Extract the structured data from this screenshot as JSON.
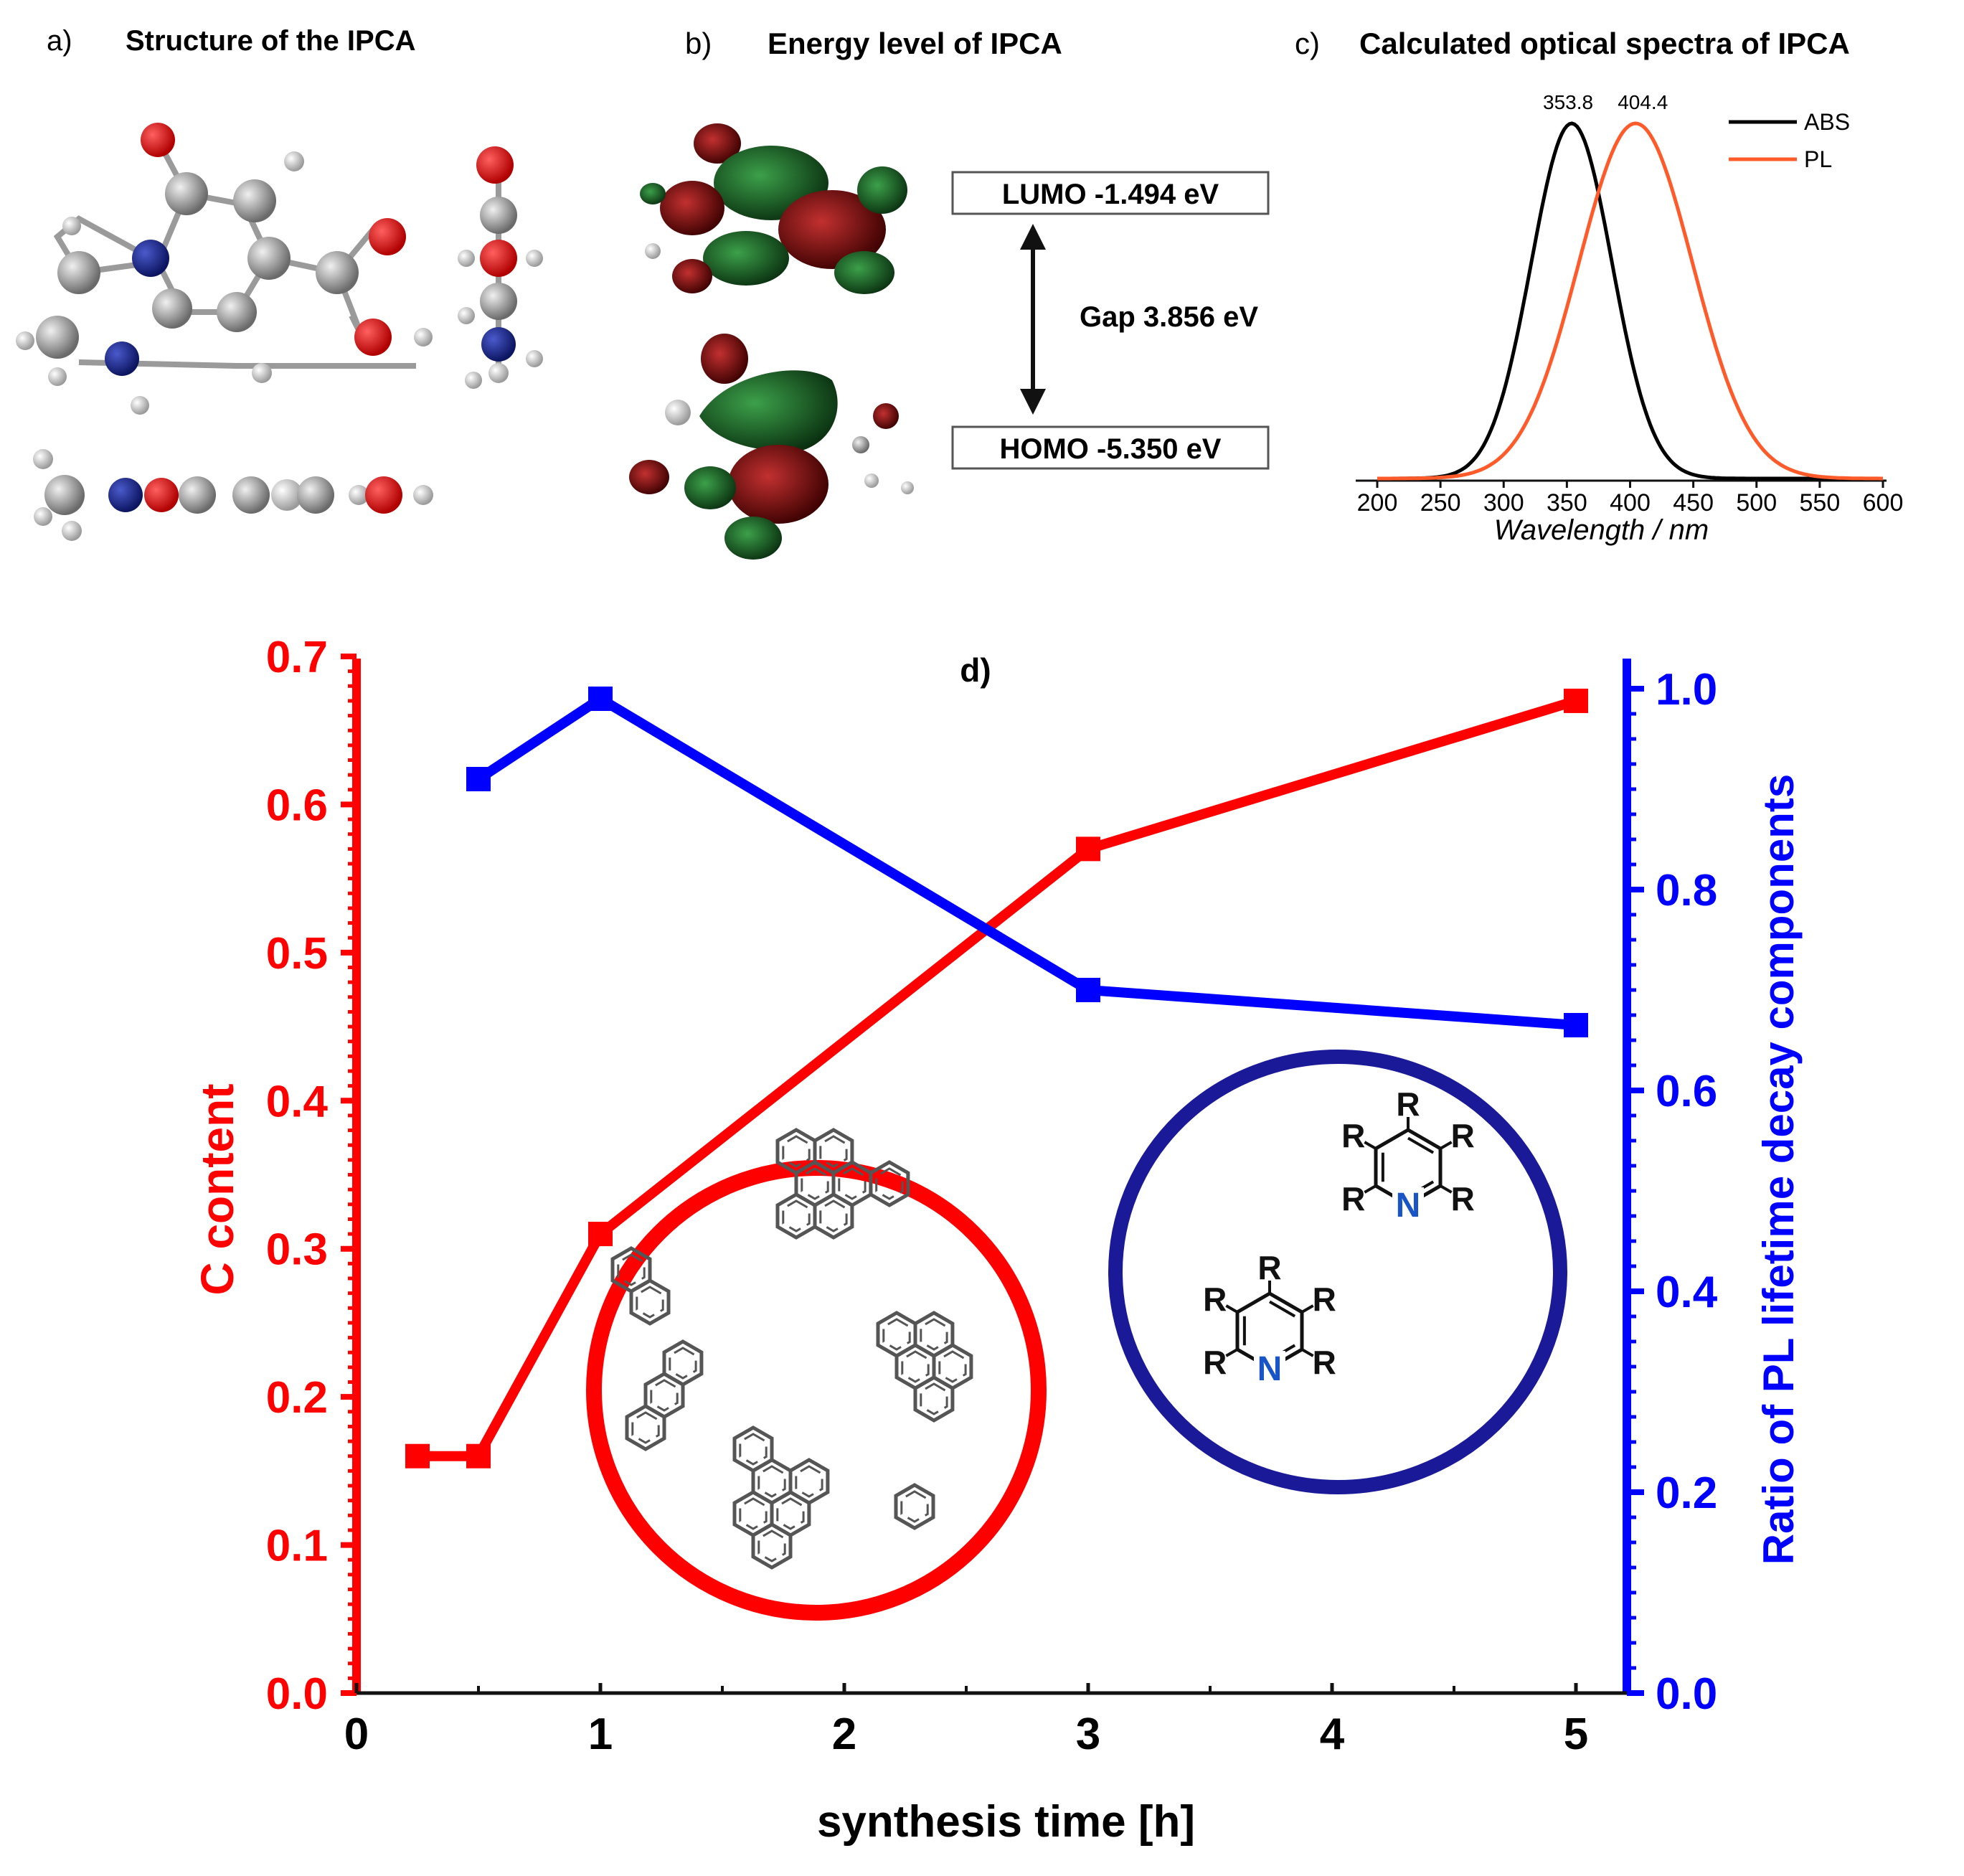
{
  "panel_a": {
    "letter": "a)",
    "title": "Structure of the IPCA"
  },
  "panel_b": {
    "letter": "b)",
    "title": "Energy level of IPCA",
    "lumo": "LUMO -1.494 eV",
    "homo": "HOMO -5.350 eV",
    "gap": "Gap 3.856 eV"
  },
  "panel_c": {
    "letter": "c)",
    "title": "Calculated optical spectra of IPCA"
  },
  "panel_d": {
    "letter": "d)"
  },
  "colors": {
    "red": "#ff0000",
    "blue": "#0000ff",
    "dark_blue": "#1a1a99",
    "black": "#000000",
    "orange": "#ff5a2a",
    "mo_green": "#1e6b2a",
    "mo_red": "#7a0a0a",
    "atom_gray": "#8a8a8a",
    "atom_red": "#e00000",
    "atom_blue": "#1a2a8a"
  },
  "inset_text": {
    "r": "R",
    "n": "N"
  },
  "chart_data": [
    {
      "type": "line",
      "title": "Calculated optical spectra of IPCA",
      "xlabel": "Wavelength / nm",
      "ylabel": "",
      "xlim": [
        200,
        600
      ],
      "xticks": [
        200,
        250,
        300,
        350,
        400,
        450,
        500,
        550,
        600
      ],
      "legend": "top-right",
      "peak_labels": [
        "353.8",
        "404.4"
      ],
      "series": [
        {
          "name": "ABS",
          "color": "#000000",
          "peak": 353.8,
          "width": 32
        },
        {
          "name": "PL",
          "color": "#ff5a2a",
          "peak": 404.4,
          "width": 45
        }
      ]
    },
    {
      "type": "line",
      "xlabel": "synthesis time [h]",
      "ylabel": "C content",
      "y2label": "Ratio of PL lifetime decay components",
      "xlim": [
        0,
        5.2
      ],
      "xticks": [
        0,
        1,
        2,
        3,
        4,
        5
      ],
      "ylim": [
        0,
        0.7
      ],
      "yticks": [
        "0.0",
        "0.1",
        "0.2",
        "0.3",
        "0.4",
        "0.5",
        "0.6",
        "0.7"
      ],
      "y2lim": [
        0,
        1.05
      ],
      "y2ticks": [
        "0.0",
        "0.2",
        "0.4",
        "0.6",
        "0.8",
        "1.0"
      ],
      "series": [
        {
          "name": "C content",
          "axis": "left",
          "color": "#ff0000",
          "x": [
            0.25,
            0.5,
            1,
            3,
            5
          ],
          "y": [
            0.16,
            0.16,
            0.31,
            0.57,
            0.67
          ]
        },
        {
          "name": "Ratio of PL lifetime decay components",
          "axis": "right",
          "color": "#0000ff",
          "x": [
            0.5,
            1,
            3,
            5
          ],
          "y": [
            0.91,
            0.99,
            0.7,
            0.665
          ]
        }
      ]
    }
  ]
}
